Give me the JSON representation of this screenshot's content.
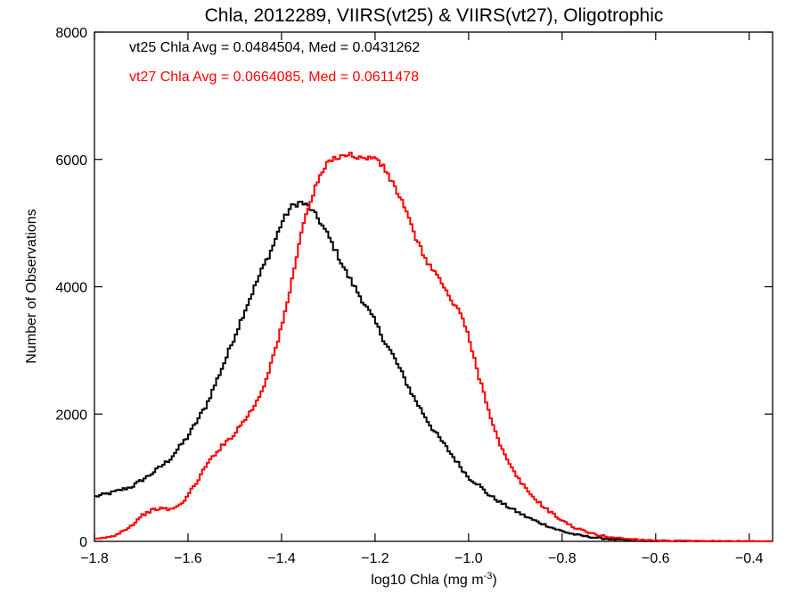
{
  "chart_data": {
    "type": "line",
    "step": true,
    "title": "Chla, 2012289, VIIRS(vt25) & VIIRS(vt27), Oligotrophic",
    "xlabel": "log10 Chla (mg m",
    "xlabel_sup": "-3",
    "xlabel_end": ")",
    "ylabel": "Number of Observations",
    "xlim": [
      -1.8,
      -0.35
    ],
    "ylim": [
      0,
      8000
    ],
    "xticks": [
      -1.8,
      -1.6,
      -1.4,
      -1.2,
      -1.0,
      -0.8,
      -0.6,
      -0.4
    ],
    "xtick_labels": [
      "−1.8",
      "−1.6",
      "−1.4",
      "−1.2",
      "−1.0",
      "−0.8",
      "−0.6",
      "−0.4"
    ],
    "yticks": [
      0,
      2000,
      4000,
      6000,
      8000
    ],
    "ytick_labels": [
      "0",
      "2000",
      "4000",
      "6000",
      "8000"
    ],
    "grid": false,
    "annotations": [
      {
        "text": "vt25 Chla Avg = 0.0484504, Med = 0.0431262",
        "color": "#000000"
      },
      {
        "text": "vt27 Chla Avg = 0.0664085, Med = 0.0611478",
        "color": "#ff0000"
      }
    ],
    "series": [
      {
        "color": "#000000",
        "x": [
          -1.8,
          -1.76,
          -1.72,
          -1.68,
          -1.64,
          -1.6,
          -1.56,
          -1.52,
          -1.48,
          -1.44,
          -1.42,
          -1.4,
          -1.38,
          -1.36,
          -1.34,
          -1.32,
          -1.3,
          -1.28,
          -1.26,
          -1.24,
          -1.22,
          -1.2,
          -1.18,
          -1.16,
          -1.14,
          -1.12,
          -1.1,
          -1.08,
          -1.06,
          -1.04,
          -1.02,
          -1.0,
          -0.98,
          -0.96,
          -0.94,
          -0.92,
          -0.9,
          -0.88,
          -0.86,
          -0.84,
          -0.82,
          -0.8,
          -0.78,
          -0.76,
          -0.72,
          -0.68,
          -0.64,
          -0.6,
          -0.55,
          -0.5,
          -0.45,
          -0.4,
          -0.35
        ],
        "y": [
          700,
          770,
          860,
          1050,
          1280,
          1650,
          2150,
          2850,
          3600,
          4300,
          4600,
          5000,
          5250,
          5330,
          5250,
          5050,
          4800,
          4500,
          4200,
          3950,
          3700,
          3450,
          3150,
          2900,
          2600,
          2300,
          2050,
          1800,
          1600,
          1400,
          1200,
          1000,
          900,
          750,
          650,
          560,
          480,
          400,
          330,
          270,
          210,
          160,
          120,
          90,
          50,
          25,
          12,
          6,
          3,
          1,
          0,
          0,
          0
        ]
      },
      {
        "color": "#ff0000",
        "x": [
          -1.8,
          -1.76,
          -1.72,
          -1.7,
          -1.68,
          -1.66,
          -1.64,
          -1.62,
          -1.6,
          -1.58,
          -1.56,
          -1.54,
          -1.52,
          -1.5,
          -1.48,
          -1.46,
          -1.44,
          -1.42,
          -1.4,
          -1.38,
          -1.36,
          -1.34,
          -1.32,
          -1.3,
          -1.28,
          -1.26,
          -1.24,
          -1.22,
          -1.2,
          -1.18,
          -1.16,
          -1.14,
          -1.12,
          -1.1,
          -1.08,
          -1.06,
          -1.04,
          -1.02,
          -1.0,
          -0.98,
          -0.96,
          -0.94,
          -0.92,
          -0.9,
          -0.88,
          -0.86,
          -0.84,
          -0.82,
          -0.8,
          -0.78,
          -0.76,
          -0.74,
          -0.72,
          -0.7,
          -0.66,
          -0.62,
          -0.58,
          -0.54,
          -0.5,
          -0.45,
          -0.4,
          -0.35
        ],
        "y": [
          30,
          80,
          250,
          400,
          480,
          520,
          500,
          550,
          720,
          950,
          1200,
          1400,
          1550,
          1700,
          1900,
          2100,
          2400,
          2850,
          3350,
          4000,
          4800,
          5300,
          5700,
          5950,
          6050,
          6080,
          6050,
          6000,
          6050,
          5850,
          5600,
          5300,
          4900,
          4550,
          4300,
          4100,
          3800,
          3650,
          3200,
          2650,
          2150,
          1650,
          1300,
          1050,
          850,
          680,
          550,
          430,
          330,
          240,
          180,
          130,
          95,
          70,
          40,
          20,
          10,
          5,
          2,
          1,
          0,
          0
        ]
      }
    ]
  }
}
